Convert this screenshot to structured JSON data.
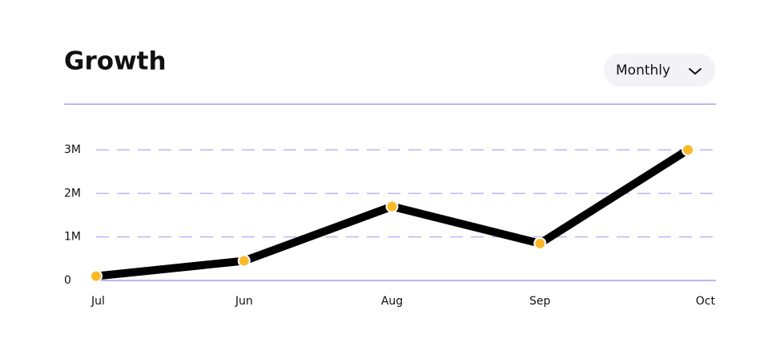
{
  "chart_data": {
    "type": "line",
    "title": "Growth",
    "categories": [
      "Jul",
      "Jun",
      "Aug",
      "Sep",
      "Oct"
    ],
    "series": [
      {
        "name": "Growth",
        "color": "#000000",
        "marker_color": "#fbb928",
        "values": [
          100000,
          450000,
          1700000,
          850000,
          3000000
        ]
      }
    ],
    "ylim": [
      0,
      3000000
    ],
    "yticks": [
      0,
      {
        "value": 1000000,
        "label": "1M"
      },
      {
        "value": 2000000,
        "label": "2M"
      },
      {
        "value": 3000000,
        "label": "3M"
      }
    ],
    "grid": true
  },
  "dropdown": {
    "label": "Monthly"
  }
}
